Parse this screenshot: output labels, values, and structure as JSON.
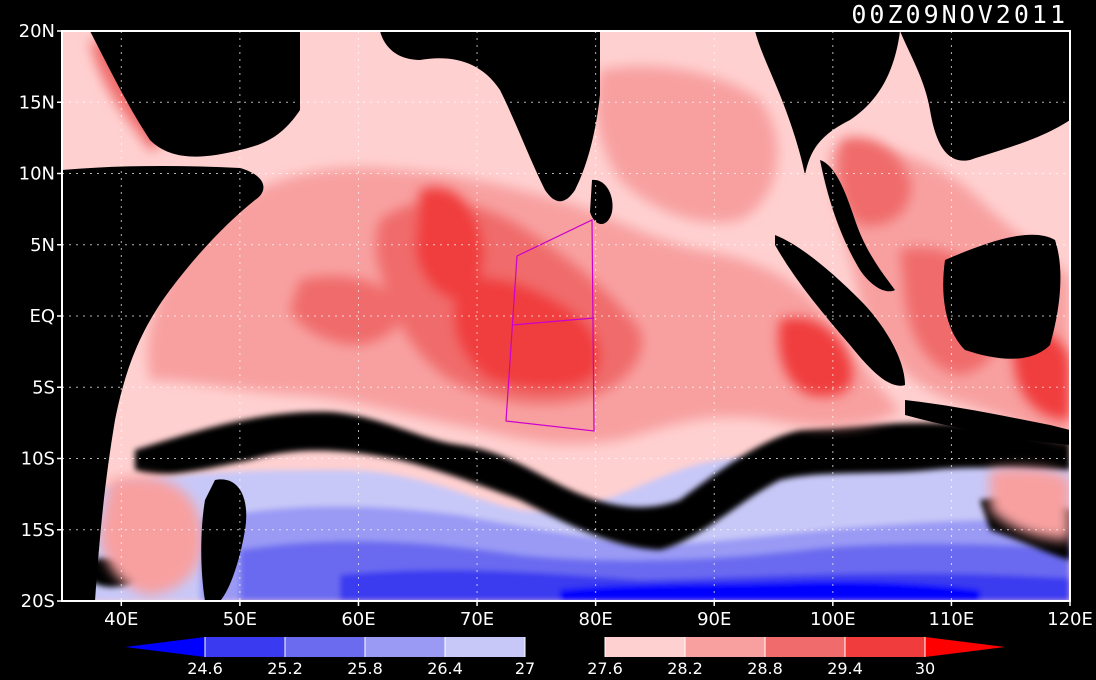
{
  "timestamp": "00Z09NOV2011",
  "map": {
    "lon_range": [
      35,
      120
    ],
    "lat_range": [
      -20,
      20
    ],
    "lat_ticks": [
      {
        "value": 20,
        "label": "20N"
      },
      {
        "value": 15,
        "label": "15N"
      },
      {
        "value": 10,
        "label": "10N"
      },
      {
        "value": 5,
        "label": "5N"
      },
      {
        "value": 0,
        "label": "EQ"
      },
      {
        "value": -5,
        "label": "5S"
      },
      {
        "value": -10,
        "label": "10S"
      },
      {
        "value": -15,
        "label": "15S"
      },
      {
        "value": -20,
        "label": "20S"
      }
    ],
    "lon_ticks": [
      {
        "value": 40,
        "label": "40E"
      },
      {
        "value": 50,
        "label": "50E"
      },
      {
        "value": 60,
        "label": "60E"
      },
      {
        "value": 70,
        "label": "70E"
      },
      {
        "value": 80,
        "label": "80E"
      },
      {
        "value": 90,
        "label": "90E"
      },
      {
        "value": 100,
        "label": "100E"
      },
      {
        "value": 110,
        "label": "110E"
      },
      {
        "value": 120,
        "label": "120E"
      }
    ],
    "grid": "dotted",
    "box_outline_color": "#cc00cc",
    "land_color": "#000000"
  },
  "colorbar": {
    "levels": [
      "24.6",
      "25.2",
      "25.8",
      "26.4",
      "27",
      "27.6",
      "28.2",
      "28.8",
      "29.4",
      "30"
    ],
    "colors": [
      "#0000ff",
      "#3a3af0",
      "#6b6bf0",
      "#9a9af5",
      "#c8c8f8",
      "#000000",
      "#ffd0d0",
      "#f8a0a0",
      "#f06c6c",
      "#f03c3c",
      "#ff0000"
    ]
  }
}
